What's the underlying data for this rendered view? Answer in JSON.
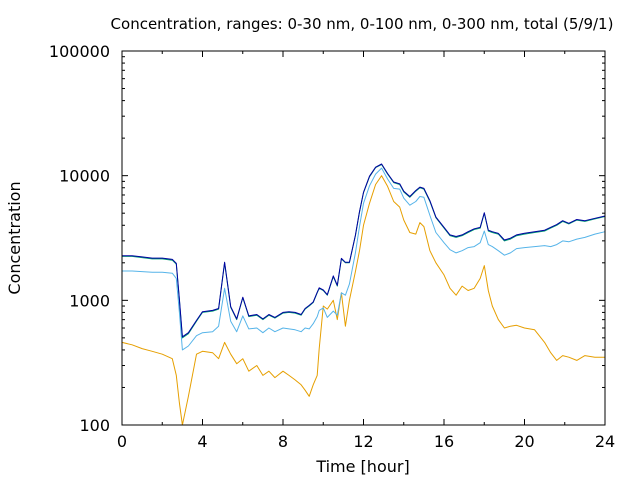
{
  "chart_data": {
    "type": "line",
    "title": "Concentration, ranges: 0-30 nm, 0-100 nm, 0-300 nm, total (5/9/1)",
    "xlabel": "Time [hour]",
    "ylabel": "Concentration",
    "xlim": [
      0,
      24
    ],
    "ylim": [
      100,
      100000
    ],
    "yscale": "log",
    "grid": false,
    "legend": "none",
    "x_ticks": [
      "0",
      "4",
      "8",
      "12",
      "16",
      "20",
      "24"
    ],
    "y_ticks": [
      "100",
      "1000",
      "10000",
      "100000"
    ],
    "series": [
      {
        "color": "#e69f00",
        "x": [
          0,
          0.5,
          1,
          1.5,
          2,
          2.5,
          2.7,
          2.85,
          3,
          3.3,
          3.7,
          4,
          4.5,
          4.8,
          5.1,
          5.4,
          5.7,
          6,
          6.3,
          6.7,
          7,
          7.3,
          7.6,
          8,
          8.3,
          8.6,
          8.9,
          9.1,
          9.3,
          9.5,
          9.7,
          9.8,
          10,
          10.2,
          10.5,
          10.7,
          10.9,
          11.1,
          11.3,
          11.6,
          11.8,
          12,
          12.3,
          12.6,
          12.9,
          13.2,
          13.5,
          13.8,
          14,
          14.3,
          14.6,
          14.8,
          15,
          15.3,
          15.6,
          16,
          16.3,
          16.6,
          16.9,
          17.2,
          17.5,
          17.8,
          18,
          18.2,
          18.4,
          18.7,
          19,
          19.3,
          19.6,
          20,
          20.5,
          21,
          21.3,
          21.6,
          21.9,
          22.2,
          22.6,
          23,
          23.5,
          24
        ],
        "y": [
          460,
          440,
          410,
          390,
          370,
          340,
          250,
          150,
          100,
          170,
          370,
          390,
          380,
          340,
          460,
          370,
          310,
          340,
          270,
          300,
          250,
          270,
          240,
          270,
          250,
          230,
          210,
          190,
          170,
          210,
          250,
          410,
          900,
          850,
          1000,
          700,
          1150,
          620,
          1000,
          1700,
          2500,
          4000,
          6000,
          8500,
          10000,
          8200,
          6200,
          5600,
          4400,
          3500,
          3400,
          4200,
          3900,
          2500,
          2000,
          1600,
          1250,
          1100,
          1300,
          1200,
          1250,
          1500,
          1900,
          1200,
          900,
          700,
          600,
          620,
          630,
          600,
          580,
          460,
          380,
          330,
          360,
          350,
          330,
          360,
          350,
          350
        ]
      },
      {
        "color": "#56b4e9",
        "x": [
          0,
          0.5,
          1,
          1.5,
          2,
          2.5,
          2.7,
          2.85,
          3,
          3.3,
          3.7,
          4,
          4.5,
          4.8,
          5.1,
          5.4,
          5.7,
          6,
          6.3,
          6.7,
          7,
          7.3,
          7.6,
          8,
          8.3,
          8.6,
          8.9,
          9.1,
          9.3,
          9.5,
          9.7,
          9.8,
          10,
          10.2,
          10.5,
          10.7,
          10.9,
          11.1,
          11.3,
          11.6,
          11.8,
          12,
          12.3,
          12.6,
          12.9,
          13.2,
          13.5,
          13.8,
          14,
          14.3,
          14.6,
          14.8,
          15,
          15.3,
          15.6,
          16,
          16.3,
          16.6,
          16.9,
          17.2,
          17.5,
          17.8,
          18,
          18.2,
          18.4,
          18.7,
          19,
          19.3,
          19.6,
          20,
          20.5,
          21,
          21.3,
          21.6,
          21.9,
          22.2,
          22.6,
          23,
          23.5,
          24
        ],
        "y": [
          1720,
          1720,
          1700,
          1680,
          1680,
          1650,
          1500,
          800,
          400,
          430,
          520,
          550,
          560,
          620,
          1250,
          680,
          560,
          750,
          590,
          600,
          550,
          600,
          560,
          600,
          590,
          580,
          560,
          600,
          590,
          650,
          740,
          830,
          870,
          730,
          820,
          760,
          1150,
          1100,
          1350,
          2400,
          3900,
          6000,
          8300,
          10300,
          11500,
          9400,
          7900,
          7800,
          6600,
          5800,
          6200,
          6800,
          6700,
          4800,
          3500,
          2900,
          2550,
          2400,
          2500,
          2650,
          2700,
          2900,
          3600,
          2800,
          2700,
          2500,
          2300,
          2400,
          2600,
          2650,
          2700,
          2750,
          2700,
          2800,
          3000,
          2950,
          3100,
          3200,
          3400,
          3550
        ]
      },
      {
        "color": "#009e73",
        "x": [
          0,
          0.5,
          1,
          1.5,
          2,
          2.5,
          2.7,
          2.85,
          3,
          3.3,
          3.7,
          4,
          4.5,
          4.8,
          5.1,
          5.4,
          5.7,
          6,
          6.3,
          6.7,
          7,
          7.3,
          7.6,
          8,
          8.3,
          8.6,
          8.9,
          9.1,
          9.3,
          9.5,
          9.7,
          9.8,
          10,
          10.2,
          10.5,
          10.7,
          10.9,
          11.1,
          11.3,
          11.6,
          11.8,
          12,
          12.3,
          12.6,
          12.9,
          13.2,
          13.5,
          13.8,
          14,
          14.3,
          14.6,
          14.8,
          15,
          15.3,
          15.6,
          16,
          16.3,
          16.6,
          16.9,
          17.2,
          17.5,
          17.8,
          18,
          18.2,
          18.4,
          18.7,
          19,
          19.3,
          19.6,
          20,
          20.5,
          21,
          21.3,
          21.6,
          21.9,
          22.2,
          22.6,
          23,
          23.5,
          24
        ],
        "y": [
          2250,
          2250,
          2200,
          2150,
          2150,
          2100,
          1950,
          1000,
          500,
          540,
          680,
          800,
          820,
          850,
          2000,
          880,
          700,
          1050,
          740,
          760,
          700,
          760,
          720,
          790,
          800,
          790,
          760,
          850,
          900,
          960,
          1150,
          1250,
          1200,
          1100,
          1550,
          1300,
          2150,
          2000,
          2000,
          3300,
          5100,
          7300,
          9800,
          11600,
          12300,
          10300,
          8800,
          8500,
          7400,
          6700,
          7500,
          8000,
          7800,
          6200,
          4600,
          3800,
          3300,
          3200,
          3300,
          3500,
          3700,
          3800,
          5000,
          3600,
          3500,
          3400,
          3000,
          3100,
          3300,
          3400,
          3500,
          3600,
          3800,
          4000,
          4300,
          4100,
          4400,
          4300,
          4500,
          4700
        ]
      },
      {
        "color": "#0000a0",
        "x": [
          0,
          0.5,
          1,
          1.5,
          2,
          2.5,
          2.7,
          2.85,
          3,
          3.3,
          3.7,
          4,
          4.5,
          4.8,
          5.1,
          5.4,
          5.7,
          6,
          6.3,
          6.7,
          7,
          7.3,
          7.6,
          8,
          8.3,
          8.6,
          8.9,
          9.1,
          9.3,
          9.5,
          9.7,
          9.8,
          10,
          10.2,
          10.5,
          10.7,
          10.9,
          11.1,
          11.3,
          11.6,
          11.8,
          12,
          12.3,
          12.6,
          12.9,
          13.2,
          13.5,
          13.8,
          14,
          14.3,
          14.6,
          14.8,
          15,
          15.3,
          15.6,
          16,
          16.3,
          16.6,
          16.9,
          17.2,
          17.5,
          17.8,
          18,
          18.2,
          18.4,
          18.7,
          19,
          19.3,
          19.6,
          20,
          20.5,
          21,
          21.3,
          21.6,
          21.9,
          22.2,
          22.6,
          23,
          23.5,
          24
        ],
        "y": [
          2280,
          2280,
          2230,
          2180,
          2180,
          2130,
          1980,
          1020,
          510,
          550,
          690,
          810,
          830,
          860,
          2020,
          890,
          710,
          1060,
          750,
          770,
          710,
          770,
          730,
          800,
          810,
          800,
          770,
          860,
          910,
          970,
          1160,
          1260,
          1210,
          1110,
          1570,
          1320,
          2170,
          2020,
          2020,
          3330,
          5150,
          7350,
          9900,
          11700,
          12400,
          10400,
          8900,
          8600,
          7500,
          6800,
          7600,
          8100,
          7900,
          6300,
          4650,
          3850,
          3350,
          3250,
          3350,
          3550,
          3750,
          3850,
          5050,
          3650,
          3550,
          3450,
          3050,
          3150,
          3350,
          3450,
          3550,
          3650,
          3850,
          4050,
          4350,
          4150,
          4450,
          4350,
          4550,
          4750
        ]
      }
    ]
  }
}
